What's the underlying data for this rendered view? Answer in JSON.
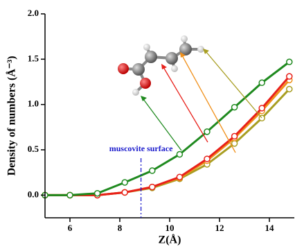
{
  "chart_data": {
    "type": "line",
    "x_label": "Z(Å)",
    "y_label": "Density of numbers (Å⁻³)",
    "annotation": {
      "text": "muscovite surface",
      "x": 8.85,
      "color": "#1a1acc"
    },
    "x": [
      5,
      6,
      7.1,
      8.2,
      9.3,
      10.4,
      11.5,
      12.6,
      13.7,
      14.8
    ],
    "series": [
      {
        "color": "#1f8a1f",
        "values": [
          0,
          0,
          0.02,
          0.14,
          0.27,
          0.45,
          0.7,
          0.97,
          1.24,
          1.47
        ]
      },
      {
        "color": "#e8201a",
        "values": [
          0,
          0,
          0,
          0.03,
          0.09,
          0.2,
          0.4,
          0.65,
          0.96,
          1.31
        ]
      },
      {
        "color": "#f0901a",
        "values": [
          0,
          0,
          0,
          0.03,
          0.09,
          0.19,
          0.38,
          0.63,
          0.93,
          1.27
        ]
      },
      {
        "color": "#a89e22",
        "values": [
          0,
          0,
          0,
          0.03,
          0.08,
          0.18,
          0.34,
          0.57,
          0.85,
          1.17
        ]
      }
    ],
    "xlim": [
      5,
      15
    ],
    "xticks": [
      6,
      8,
      10,
      12,
      14
    ],
    "ylim": [
      -0.25,
      2.0
    ],
    "yticks": [
      {
        "value": 0,
        "label": "0.0"
      },
      {
        "value": 0.5,
        "label": "0.5"
      },
      {
        "value": 1,
        "label": "1.0"
      },
      {
        "value": 1.5,
        "label": "1.5"
      },
      {
        "value": 2,
        "label": "2.0"
      }
    ]
  }
}
